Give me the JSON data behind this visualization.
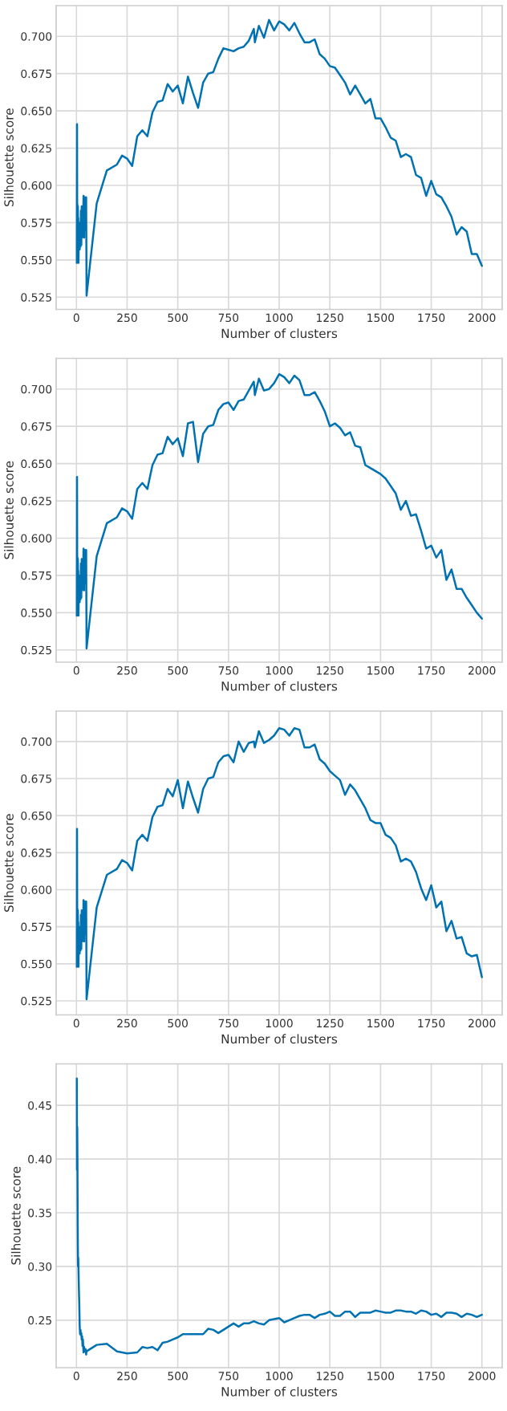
{
  "chart_data": [
    {
      "type": "line",
      "xlabel": "Number of clusters",
      "ylabel": "Silhouette score",
      "xlim": [
        -100,
        2100
      ],
      "ylim": [
        0.5168,
        0.7206
      ],
      "xticks": [
        0,
        250,
        500,
        750,
        1000,
        1250,
        1500,
        1750,
        2000
      ],
      "yticks": [
        {
          "value": 0.525,
          "label": "0.525"
        },
        {
          "value": 0.55,
          "label": "0.550"
        },
        {
          "value": 0.575,
          "label": "0.575"
        },
        {
          "value": 0.6,
          "label": "0.600"
        },
        {
          "value": 0.625,
          "label": "0.625"
        },
        {
          "value": 0.65,
          "label": "0.650"
        },
        {
          "value": 0.675,
          "label": "0.675"
        },
        {
          "value": 0.7,
          "label": "0.700"
        }
      ],
      "grid": true,
      "marker": "none",
      "line_style": "solid",
      "series": [
        {
          "color": "#0072b2",
          "x": [
            2,
            3,
            4,
            5,
            6,
            7,
            8,
            9,
            10,
            12,
            14,
            16,
            18,
            20,
            22,
            24,
            26,
            28,
            30,
            32,
            35,
            38,
            40,
            45,
            48,
            50,
            100,
            150,
            200,
            225,
            250,
            275,
            300,
            325,
            350,
            375,
            400,
            425,
            450,
            475,
            500,
            525,
            550,
            575,
            600,
            625,
            650,
            675,
            700,
            725,
            750,
            775,
            800,
            825,
            850,
            875,
            880,
            900,
            925,
            950,
            975,
            1000,
            1025,
            1050,
            1075,
            1100,
            1125,
            1150,
            1175,
            1200,
            1225,
            1250,
            1275,
            1300,
            1325,
            1350,
            1375,
            1400,
            1425,
            1450,
            1475,
            1500,
            1525,
            1550,
            1575,
            1600,
            1625,
            1650,
            1675,
            1700,
            1725,
            1750,
            1775,
            1800,
            1825,
            1850,
            1875,
            1900,
            1925,
            1950,
            1975,
            2000
          ],
          "values": [
            0.548,
            0.641,
            0.568,
            0.587,
            0.565,
            0.586,
            0.572,
            0.578,
            0.548,
            0.57,
            0.565,
            0.557,
            0.575,
            0.559,
            0.583,
            0.56,
            0.586,
            0.565,
            0.586,
            0.568,
            0.593,
            0.565,
            0.592,
            0.57,
            0.592,
            0.526,
            0.588,
            0.61,
            0.614,
            0.62,
            0.618,
            0.613,
            0.633,
            0.637,
            0.633,
            0.649,
            0.656,
            0.657,
            0.668,
            0.663,
            0.667,
            0.655,
            0.673,
            0.662,
            0.652,
            0.669,
            0.675,
            0.676,
            0.685,
            0.692,
            0.691,
            0.69,
            0.692,
            0.693,
            0.697,
            0.705,
            0.696,
            0.707,
            0.699,
            0.711,
            0.704,
            0.71,
            0.708,
            0.704,
            0.709,
            0.702,
            0.696,
            0.696,
            0.698,
            0.688,
            0.685,
            0.68,
            0.679,
            0.674,
            0.669,
            0.661,
            0.667,
            0.661,
            0.655,
            0.658,
            0.645,
            0.645,
            0.639,
            0.632,
            0.63,
            0.619,
            0.621,
            0.619,
            0.607,
            0.605,
            0.593,
            0.603,
            0.594,
            0.592,
            0.586,
            0.579,
            0.567,
            0.572,
            0.569,
            0.554,
            0.554,
            0.546
          ]
        }
      ]
    },
    {
      "type": "line",
      "xlabel": "Number of clusters",
      "ylabel": "Silhouette score",
      "xlim": [
        -100,
        2100
      ],
      "ylim": [
        0.5168,
        0.7206
      ],
      "xticks": [
        0,
        250,
        500,
        750,
        1000,
        1250,
        1500,
        1750,
        2000
      ],
      "yticks": [
        {
          "value": 0.525,
          "label": "0.525"
        },
        {
          "value": 0.55,
          "label": "0.550"
        },
        {
          "value": 0.575,
          "label": "0.575"
        },
        {
          "value": 0.6,
          "label": "0.600"
        },
        {
          "value": 0.625,
          "label": "0.625"
        },
        {
          "value": 0.65,
          "label": "0.650"
        },
        {
          "value": 0.675,
          "label": "0.675"
        },
        {
          "value": 0.7,
          "label": "0.700"
        }
      ],
      "grid": true,
      "marker": "none",
      "line_style": "solid",
      "series": [
        {
          "color": "#0072b2",
          "x": [
            2,
            3,
            4,
            5,
            6,
            7,
            8,
            9,
            10,
            12,
            14,
            16,
            18,
            20,
            22,
            24,
            26,
            28,
            30,
            32,
            35,
            38,
            40,
            45,
            48,
            50,
            100,
            150,
            200,
            225,
            250,
            275,
            300,
            325,
            350,
            375,
            400,
            425,
            450,
            475,
            500,
            525,
            550,
            575,
            600,
            625,
            650,
            675,
            700,
            725,
            750,
            775,
            800,
            825,
            850,
            875,
            880,
            900,
            925,
            950,
            975,
            1000,
            1025,
            1050,
            1075,
            1100,
            1125,
            1150,
            1175,
            1200,
            1225,
            1250,
            1275,
            1300,
            1325,
            1350,
            1375,
            1400,
            1425,
            1450,
            1475,
            1500,
            1525,
            1550,
            1575,
            1600,
            1625,
            1650,
            1675,
            1700,
            1725,
            1750,
            1775,
            1800,
            1825,
            1850,
            1875,
            1900,
            1925,
            1950,
            1975,
            2000
          ],
          "values": [
            0.548,
            0.641,
            0.568,
            0.587,
            0.565,
            0.586,
            0.572,
            0.578,
            0.548,
            0.57,
            0.565,
            0.557,
            0.575,
            0.559,
            0.583,
            0.56,
            0.586,
            0.565,
            0.586,
            0.568,
            0.593,
            0.565,
            0.592,
            0.57,
            0.592,
            0.526,
            0.588,
            0.61,
            0.614,
            0.62,
            0.618,
            0.613,
            0.633,
            0.637,
            0.633,
            0.649,
            0.656,
            0.657,
            0.668,
            0.663,
            0.667,
            0.655,
            0.677,
            0.678,
            0.651,
            0.67,
            0.675,
            0.676,
            0.686,
            0.69,
            0.691,
            0.686,
            0.692,
            0.693,
            0.699,
            0.705,
            0.696,
            0.707,
            0.699,
            0.7,
            0.704,
            0.71,
            0.708,
            0.704,
            0.709,
            0.706,
            0.696,
            0.696,
            0.698,
            0.692,
            0.685,
            0.675,
            0.677,
            0.674,
            0.669,
            0.671,
            0.662,
            0.661,
            0.649,
            0.647,
            0.645,
            0.643,
            0.64,
            0.635,
            0.63,
            0.619,
            0.625,
            0.615,
            0.616,
            0.605,
            0.593,
            0.595,
            0.587,
            0.592,
            0.572,
            0.579,
            0.566,
            0.566,
            0.56,
            0.555,
            0.55,
            0.546
          ]
        }
      ]
    },
    {
      "type": "line",
      "xlabel": "Number of clusters",
      "ylabel": "Silhouette score",
      "xlim": [
        -100,
        2100
      ],
      "ylim": [
        0.5155,
        0.7205
      ],
      "xticks": [
        0,
        250,
        500,
        750,
        1000,
        1250,
        1500,
        1750,
        2000
      ],
      "yticks": [
        {
          "value": 0.525,
          "label": "0.525"
        },
        {
          "value": 0.55,
          "label": "0.550"
        },
        {
          "value": 0.575,
          "label": "0.575"
        },
        {
          "value": 0.6,
          "label": "0.600"
        },
        {
          "value": 0.625,
          "label": "0.625"
        },
        {
          "value": 0.65,
          "label": "0.650"
        },
        {
          "value": 0.675,
          "label": "0.675"
        },
        {
          "value": 0.7,
          "label": "0.700"
        }
      ],
      "grid": true,
      "marker": "none",
      "line_style": "solid",
      "series": [
        {
          "color": "#0072b2",
          "x": [
            2,
            3,
            4,
            5,
            6,
            7,
            8,
            9,
            10,
            12,
            14,
            16,
            18,
            20,
            22,
            24,
            26,
            28,
            30,
            32,
            35,
            38,
            40,
            45,
            48,
            50,
            100,
            150,
            200,
            225,
            250,
            275,
            300,
            325,
            350,
            375,
            400,
            425,
            450,
            475,
            500,
            525,
            550,
            575,
            600,
            625,
            650,
            675,
            700,
            725,
            750,
            775,
            800,
            825,
            850,
            875,
            880,
            900,
            925,
            950,
            975,
            1000,
            1025,
            1050,
            1075,
            1100,
            1125,
            1150,
            1175,
            1200,
            1225,
            1250,
            1275,
            1300,
            1325,
            1350,
            1375,
            1400,
            1425,
            1450,
            1475,
            1500,
            1525,
            1550,
            1575,
            1600,
            1625,
            1650,
            1675,
            1700,
            1725,
            1750,
            1775,
            1800,
            1825,
            1850,
            1875,
            1900,
            1925,
            1950,
            1975,
            2000
          ],
          "values": [
            0.548,
            0.641,
            0.568,
            0.587,
            0.565,
            0.586,
            0.572,
            0.578,
            0.548,
            0.57,
            0.565,
            0.557,
            0.575,
            0.559,
            0.583,
            0.56,
            0.586,
            0.565,
            0.586,
            0.568,
            0.593,
            0.565,
            0.592,
            0.57,
            0.592,
            0.526,
            0.588,
            0.61,
            0.614,
            0.62,
            0.618,
            0.613,
            0.633,
            0.637,
            0.633,
            0.649,
            0.656,
            0.657,
            0.668,
            0.663,
            0.674,
            0.655,
            0.673,
            0.662,
            0.652,
            0.668,
            0.675,
            0.676,
            0.686,
            0.69,
            0.691,
            0.686,
            0.7,
            0.693,
            0.699,
            0.7,
            0.696,
            0.707,
            0.699,
            0.701,
            0.704,
            0.709,
            0.708,
            0.704,
            0.709,
            0.708,
            0.696,
            0.696,
            0.698,
            0.688,
            0.685,
            0.68,
            0.677,
            0.674,
            0.664,
            0.671,
            0.667,
            0.661,
            0.655,
            0.647,
            0.645,
            0.645,
            0.637,
            0.635,
            0.63,
            0.619,
            0.621,
            0.619,
            0.612,
            0.601,
            0.593,
            0.603,
            0.588,
            0.592,
            0.572,
            0.579,
            0.567,
            0.568,
            0.557,
            0.555,
            0.556,
            0.541
          ]
        }
      ]
    },
    {
      "type": "line",
      "xlabel": "Number of clusters",
      "ylabel": "Silhouette score",
      "xlim": [
        -100,
        2100
      ],
      "ylim": [
        0.2058,
        0.4886
      ],
      "xticks": [
        0,
        250,
        500,
        750,
        1000,
        1250,
        1500,
        1750,
        2000
      ],
      "yticks": [
        {
          "value": 0.25,
          "label": "0.25"
        },
        {
          "value": 0.3,
          "label": "0.30"
        },
        {
          "value": 0.35,
          "label": "0.35"
        },
        {
          "value": 0.4,
          "label": "0.40"
        },
        {
          "value": 0.45,
          "label": "0.45"
        }
      ],
      "grid": true,
      "marker": "none",
      "line_style": "solid",
      "series": [
        {
          "color": "#0072b2",
          "x": [
            2,
            3,
            4,
            5,
            6,
            7,
            8,
            9,
            10,
            12,
            14,
            16,
            18,
            20,
            22,
            24,
            26,
            28,
            30,
            32,
            35,
            38,
            40,
            45,
            48,
            50,
            100,
            150,
            200,
            250,
            300,
            325,
            350,
            375,
            400,
            425,
            450,
            475,
            500,
            525,
            550,
            575,
            600,
            625,
            650,
            675,
            700,
            725,
            750,
            775,
            800,
            825,
            850,
            875,
            900,
            925,
            950,
            975,
            1000,
            1025,
            1050,
            1075,
            1100,
            1125,
            1150,
            1175,
            1200,
            1225,
            1250,
            1275,
            1300,
            1325,
            1350,
            1375,
            1400,
            1425,
            1450,
            1475,
            1500,
            1525,
            1550,
            1575,
            1600,
            1625,
            1650,
            1675,
            1700,
            1725,
            1750,
            1775,
            1800,
            1825,
            1850,
            1875,
            1900,
            1925,
            1950,
            1975,
            2000
          ],
          "values": [
            0.475,
            0.39,
            0.43,
            0.4,
            0.35,
            0.32,
            0.3,
            0.308,
            0.3,
            0.28,
            0.266,
            0.245,
            0.237,
            0.241,
            0.236,
            0.238,
            0.232,
            0.235,
            0.226,
            0.232,
            0.22,
            0.225,
            0.221,
            0.223,
            0.218,
            0.221,
            0.227,
            0.228,
            0.221,
            0.219,
            0.22,
            0.225,
            0.224,
            0.225,
            0.222,
            0.229,
            0.23,
            0.232,
            0.234,
            0.237,
            0.237,
            0.237,
            0.237,
            0.237,
            0.242,
            0.241,
            0.238,
            0.241,
            0.244,
            0.247,
            0.244,
            0.247,
            0.247,
            0.249,
            0.247,
            0.246,
            0.25,
            0.251,
            0.252,
            0.248,
            0.25,
            0.252,
            0.254,
            0.255,
            0.255,
            0.252,
            0.255,
            0.256,
            0.258,
            0.254,
            0.254,
            0.258,
            0.258,
            0.253,
            0.257,
            0.257,
            0.257,
            0.259,
            0.258,
            0.257,
            0.257,
            0.259,
            0.259,
            0.258,
            0.258,
            0.256,
            0.259,
            0.258,
            0.255,
            0.256,
            0.253,
            0.257,
            0.257,
            0.256,
            0.253,
            0.256,
            0.255,
            0.253,
            0.255
          ]
        }
      ]
    }
  ]
}
